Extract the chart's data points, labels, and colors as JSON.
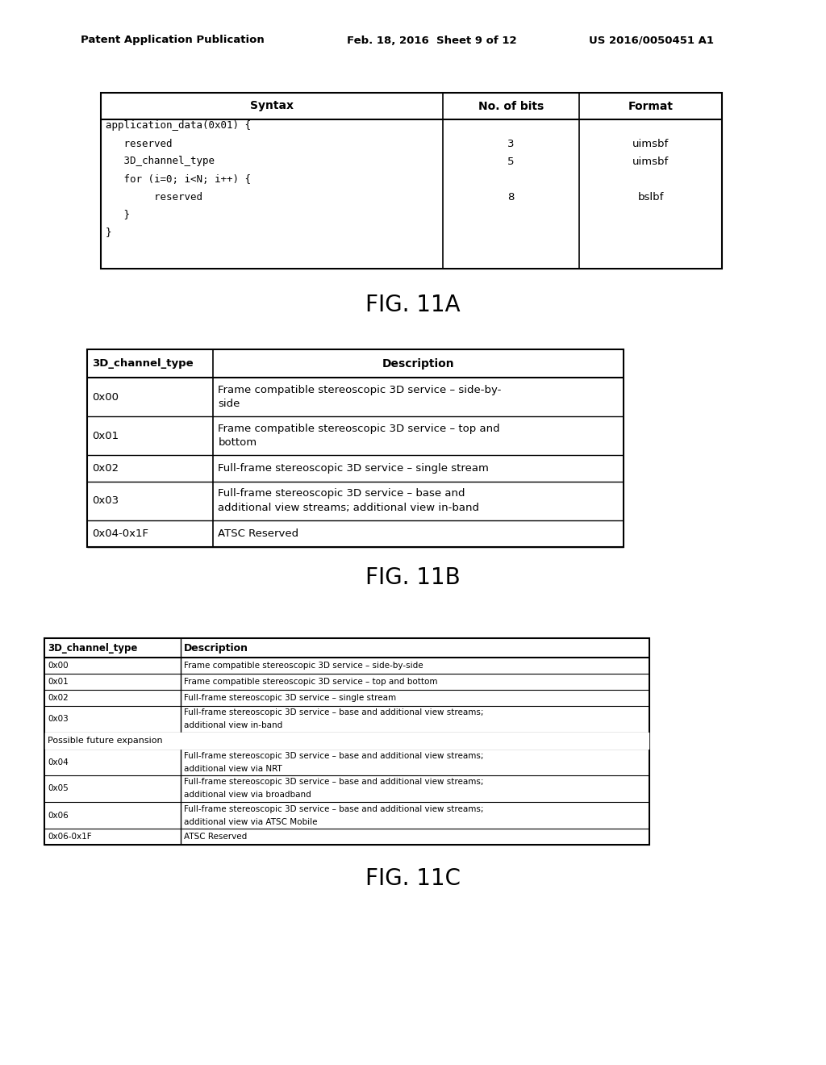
{
  "page_header_left": "Patent Application Publication",
  "page_header_mid": "Feb. 18, 2016  Sheet 9 of 12",
  "page_header_right": "US 2016/0050451 A1",
  "background_color": "#ffffff",
  "fig11a": {
    "caption": "FIG. 11A",
    "syntax_lines": [
      "application_data(0x01) {",
      "   reserved",
      "   3D_channel_type",
      "   for (i=0; i<N; i++) {",
      "        reserved",
      "   }",
      "}"
    ],
    "bits_rows": [
      1,
      2,
      4
    ],
    "bits_vals": [
      "3",
      "5",
      "8"
    ],
    "fmt_vals": [
      "uimsbf",
      "uimsbf",
      "bslbf"
    ]
  },
  "fig11b": {
    "caption": "FIG. 11B",
    "rows": [
      [
        "0x00",
        "Frame compatible stereoscopic 3D service – side-by-\nside"
      ],
      [
        "0x01",
        "Frame compatible stereoscopic 3D service – top and\nbottom"
      ],
      [
        "0x02",
        "Full-frame stereoscopic 3D service – single stream"
      ],
      [
        "0x03",
        "Full-frame stereoscopic 3D service – base and\nadditional view streams; additional view in-band"
      ],
      [
        "0x04-0x1F",
        "ATSC Reserved"
      ]
    ]
  },
  "fig11c": {
    "caption": "FIG. 11C",
    "rows": [
      [
        "0x00",
        "Frame compatible stereoscopic 3D service – side-by-side",
        false
      ],
      [
        "0x01",
        "Frame compatible stereoscopic 3D service – top and bottom",
        false
      ],
      [
        "0x02",
        "Full-frame stereoscopic 3D service – single stream",
        false
      ],
      [
        "0x03",
        "Full-frame stereoscopic 3D service – base and additional view streams;\nadditional view in-band",
        false
      ],
      [
        "Possible future expansion",
        "",
        true
      ],
      [
        "0x04",
        "Full-frame stereoscopic 3D service – base and additional view streams;\nadditional view via NRT",
        false
      ],
      [
        "0x05",
        "Full-frame stereoscopic 3D service – base and additional view streams;\nadditional view via broadband",
        false
      ],
      [
        "0x06",
        "Full-frame stereoscopic 3D service – base and additional view streams;\nadditional view via ATSC Mobile",
        false
      ],
      [
        "0x06-0x1F",
        "ATSC Reserved",
        false
      ]
    ]
  }
}
